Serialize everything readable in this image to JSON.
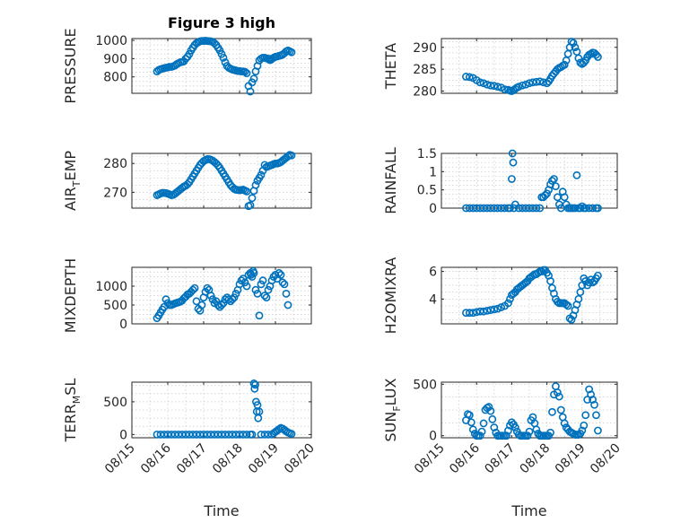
{
  "chart_data": [
    {
      "type": "scatter",
      "title": "Figure 3 high",
      "ylabel": "PRESSURE",
      "ylim": [
        710,
        1010
      ],
      "yticks": [
        800,
        900,
        1000
      ],
      "x": [
        15.7,
        15.75,
        15.8,
        15.85,
        15.9,
        15.95,
        16.0,
        16.05,
        16.1,
        16.15,
        16.2,
        16.25,
        16.3,
        16.35,
        16.4,
        16.45,
        16.5,
        16.55,
        16.6,
        16.65,
        16.7,
        16.75,
        16.8,
        16.85,
        16.9,
        16.95,
        17.0,
        17.05,
        17.1,
        17.15,
        17.2,
        17.25,
        17.3,
        17.35,
        17.4,
        17.45,
        17.5,
        17.55,
        17.6,
        17.65,
        17.7,
        17.75,
        17.8,
        17.85,
        17.9,
        17.95,
        18.0,
        18.05,
        18.1,
        18.15,
        18.2,
        18.25,
        18.3,
        18.35,
        18.4,
        18.45,
        18.5,
        18.55,
        18.6,
        18.65,
        18.7,
        18.75,
        18.8,
        18.82,
        18.85,
        18.88,
        18.9,
        18.95,
        19.0,
        19.05,
        19.1,
        19.15,
        19.2,
        19.25,
        19.3,
        19.35,
        19.4,
        19.45
      ],
      "values": [
        830,
        838,
        842,
        845,
        848,
        850,
        852,
        855,
        855,
        858,
        862,
        870,
        875,
        880,
        882,
        885,
        900,
        910,
        925,
        945,
        960,
        975,
        985,
        990,
        995,
        997,
        997,
        998,
        997,
        996,
        995,
        992,
        985,
        975,
        960,
        945,
        925,
        905,
        880,
        860,
        850,
        845,
        840,
        838,
        835,
        832,
        832,
        830,
        830,
        828,
        820,
        750,
        720,
        770,
        790,
        830,
        860,
        890,
        900,
        905,
        905,
        902,
        900,
        895,
        892,
        895,
        900,
        905,
        910,
        912,
        915,
        918,
        922,
        930,
        940,
        945,
        940,
        935
      ]
    },
    {
      "type": "scatter",
      "ylabel": "THETA",
      "ylim": [
        279.5,
        292
      ],
      "yticks": [
        280,
        285,
        290
      ],
      "x": [
        15.7,
        15.8,
        15.9,
        16.0,
        16.1,
        16.2,
        16.3,
        16.4,
        16.5,
        16.6,
        16.7,
        16.8,
        16.9,
        16.95,
        17.0,
        17.05,
        17.1,
        17.15,
        17.2,
        17.3,
        17.4,
        17.5,
        17.6,
        17.7,
        17.8,
        17.9,
        18.0,
        18.05,
        18.1,
        18.15,
        18.2,
        18.25,
        18.3,
        18.35,
        18.4,
        18.45,
        18.5,
        18.55,
        18.6,
        18.65,
        18.7,
        18.75,
        18.8,
        18.85,
        18.9,
        18.95,
        19.0,
        19.05,
        19.1,
        19.15,
        19.2,
        19.25,
        19.3,
        19.35,
        19.4,
        19.45
      ],
      "values": [
        283.3,
        283.2,
        283.0,
        282.5,
        282.0,
        281.8,
        281.5,
        281.3,
        281.2,
        281.0,
        280.8,
        280.4,
        280.3,
        280.1,
        280.0,
        280.2,
        280.5,
        280.8,
        281.0,
        281.3,
        281.5,
        281.8,
        282.0,
        282.1,
        282.2,
        282.0,
        281.8,
        282.2,
        282.8,
        283.5,
        284.0,
        284.5,
        285.0,
        285.3,
        285.5,
        285.8,
        286.0,
        287.0,
        288.5,
        290.0,
        291.3,
        291.0,
        290.0,
        289.0,
        287.5,
        286.5,
        286.2,
        286.5,
        287.0,
        287.8,
        288.3,
        288.5,
        288.8,
        288.7,
        288.3,
        287.8
      ]
    },
    {
      "type": "scatter",
      "ylabel": "AIR_TEMP",
      "ylim": [
        264.5,
        283.5
      ],
      "yticks": [
        270,
        280
      ],
      "x": [
        15.7,
        15.75,
        15.8,
        15.85,
        15.9,
        15.95,
        16.0,
        16.05,
        16.1,
        16.15,
        16.2,
        16.25,
        16.3,
        16.35,
        16.4,
        16.45,
        16.5,
        16.55,
        16.6,
        16.65,
        16.7,
        16.75,
        16.8,
        16.85,
        16.9,
        16.95,
        17.0,
        17.05,
        17.1,
        17.15,
        17.2,
        17.25,
        17.3,
        17.35,
        17.4,
        17.45,
        17.5,
        17.55,
        17.6,
        17.65,
        17.7,
        17.75,
        17.8,
        17.85,
        17.9,
        17.95,
        18.0,
        18.05,
        18.1,
        18.15,
        18.2,
        18.25,
        18.3,
        18.35,
        18.4,
        18.45,
        18.5,
        18.55,
        18.6,
        18.65,
        18.7,
        18.75,
        18.8,
        18.85,
        18.9,
        18.95,
        19.0,
        19.05,
        19.1,
        19.15,
        19.2,
        19.25,
        19.3,
        19.35,
        19.4,
        19.45
      ],
      "values": [
        269.0,
        269.3,
        269.6,
        269.8,
        269.8,
        269.7,
        269.5,
        269.3,
        269.0,
        269.1,
        269.5,
        270.0,
        270.5,
        271.0,
        271.5,
        272.0,
        272.3,
        272.8,
        273.5,
        274.5,
        275.5,
        276.5,
        277.5,
        278.5,
        279.5,
        280.2,
        280.8,
        281.2,
        281.5,
        281.5,
        281.3,
        281.0,
        280.5,
        280.0,
        279.3,
        278.5,
        277.5,
        276.5,
        275.5,
        274.5,
        273.5,
        272.5,
        271.8,
        271.2,
        270.9,
        270.8,
        270.7,
        270.8,
        270.9,
        270.6,
        270.3,
        265.2,
        265.5,
        268.0,
        270.5,
        272.5,
        274.0,
        275.0,
        276.0,
        277.5,
        279.5,
        278.8,
        279.0,
        279.3,
        279.5,
        279.8,
        280.0,
        280.0,
        280.2,
        280.5,
        281.0,
        281.5,
        282.0,
        282.5,
        283.0,
        282.8
      ]
    },
    {
      "type": "scatter",
      "ylabel": "RAINFALL",
      "ylim": [
        0,
        1.5
      ],
      "yticks": [
        0,
        0.5,
        1,
        1.5
      ],
      "x": [
        15.7,
        15.8,
        15.9,
        16.0,
        16.1,
        16.2,
        16.3,
        16.4,
        16.5,
        16.6,
        16.7,
        16.8,
        16.9,
        16.95,
        17.0,
        17.02,
        17.04,
        17.06,
        17.1,
        17.2,
        17.3,
        17.4,
        17.5,
        17.6,
        17.7,
        17.8,
        17.85,
        17.9,
        17.95,
        18.0,
        18.05,
        18.1,
        18.15,
        18.2,
        18.25,
        18.3,
        18.35,
        18.4,
        18.45,
        18.5,
        18.55,
        18.6,
        18.65,
        18.7,
        18.75,
        18.8,
        18.85,
        18.9,
        18.95,
        19.0,
        19.05,
        19.1,
        19.2,
        19.3,
        19.4,
        19.45
      ],
      "values": [
        0,
        0,
        0,
        0,
        0,
        0,
        0,
        0,
        0,
        0,
        0,
        0,
        0,
        0,
        0.8,
        1.5,
        1.25,
        0,
        0.1,
        0,
        0,
        0,
        0,
        0,
        0,
        0,
        0.3,
        0.3,
        0.35,
        0.4,
        0.5,
        0.65,
        0.75,
        0.8,
        0.6,
        0.3,
        0.1,
        0,
        0.45,
        0.3,
        0.1,
        0,
        0,
        0,
        0,
        0,
        0.9,
        0,
        0,
        0.05,
        0,
        0,
        0,
        0,
        0,
        0
      ]
    },
    {
      "type": "scatter",
      "ylabel": "MIXDEPTH",
      "ylim": [
        0,
        1500
      ],
      "yticks": [
        0,
        500,
        1000
      ],
      "x": [
        15.7,
        15.75,
        15.8,
        15.85,
        15.9,
        15.95,
        16.0,
        16.05,
        16.1,
        16.15,
        16.2,
        16.25,
        16.3,
        16.35,
        16.4,
        16.45,
        16.5,
        16.55,
        16.6,
        16.65,
        16.7,
        16.75,
        16.8,
        16.85,
        16.9,
        16.95,
        17.0,
        17.05,
        17.1,
        17.15,
        17.2,
        17.25,
        17.3,
        17.35,
        17.4,
        17.45,
        17.5,
        17.55,
        17.6,
        17.65,
        17.7,
        17.75,
        17.8,
        17.85,
        17.9,
        17.95,
        18.0,
        18.05,
        18.1,
        18.15,
        18.2,
        18.25,
        18.3,
        18.32,
        18.35,
        18.38,
        18.4,
        18.45,
        18.5,
        18.55,
        18.6,
        18.65,
        18.7,
        18.75,
        18.8,
        18.85,
        18.9,
        18.95,
        19.0,
        19.05,
        19.1,
        19.15,
        19.2,
        19.25,
        19.3,
        19.35
      ],
      "values": [
        150,
        220,
        300,
        380,
        450,
        650,
        550,
        500,
        500,
        520,
        540,
        560,
        570,
        590,
        620,
        680,
        720,
        780,
        800,
        850,
        900,
        950,
        600,
        400,
        350,
        500,
        700,
        850,
        950,
        900,
        750,
        650,
        550,
        600,
        500,
        450,
        500,
        550,
        650,
        700,
        650,
        600,
        650,
        700,
        800,
        900,
        1050,
        1150,
        1200,
        1100,
        1000,
        1300,
        1350,
        1300,
        1250,
        1400,
        1350,
        900,
        800,
        220,
        1050,
        1150,
        750,
        700,
        900,
        1000,
        1150,
        1250,
        1300,
        1200,
        1350,
        1300,
        1100,
        1050,
        800,
        500
      ]
    },
    {
      "type": "scatter",
      "ylabel": "H2OMIXRA",
      "ylim": [
        2.2,
        6.3
      ],
      "yticks": [
        4,
        6
      ],
      "x": [
        15.7,
        15.8,
        15.9,
        16.0,
        16.1,
        16.2,
        16.3,
        16.4,
        16.5,
        16.6,
        16.7,
        16.8,
        16.9,
        16.95,
        17.0,
        17.05,
        17.1,
        17.15,
        17.2,
        17.25,
        17.3,
        17.35,
        17.4,
        17.45,
        17.5,
        17.55,
        17.6,
        17.65,
        17.7,
        17.75,
        17.8,
        17.85,
        17.9,
        17.95,
        18.0,
        18.05,
        18.1,
        18.15,
        18.2,
        18.25,
        18.3,
        18.35,
        18.4,
        18.45,
        18.5,
        18.55,
        18.6,
        18.65,
        18.7,
        18.75,
        18.8,
        18.85,
        18.9,
        18.95,
        19.0,
        19.05,
        19.1,
        19.15,
        19.2,
        19.25,
        19.3,
        19.35,
        19.4,
        19.45
      ],
      "values": [
        3.0,
        3.0,
        3.0,
        3.05,
        3.1,
        3.1,
        3.15,
        3.2,
        3.25,
        3.3,
        3.4,
        3.5,
        3.7,
        4.0,
        4.3,
        4.4,
        4.5,
        4.7,
        4.8,
        4.9,
        5.0,
        5.1,
        5.2,
        5.3,
        5.5,
        5.6,
        5.7,
        5.8,
        5.8,
        5.9,
        6.0,
        6.0,
        6.1,
        6.1,
        5.9,
        5.7,
        5.3,
        4.8,
        4.4,
        4.0,
        3.8,
        3.7,
        3.7,
        3.7,
        3.7,
        3.6,
        3.5,
        2.6,
        2.5,
        2.8,
        3.2,
        3.6,
        4.0,
        4.5,
        5.0,
        5.5,
        5.3,
        5.0,
        5.2,
        5.4,
        5.2,
        5.3,
        5.5,
        5.7
      ]
    },
    {
      "type": "scatter",
      "ylabel": "TERR_MSL",
      "xlabel": "Time",
      "ylim": [
        -50,
        800
      ],
      "yticks": [
        0,
        500
      ],
      "x": [
        15.7,
        15.8,
        15.9,
        16.0,
        16.1,
        16.2,
        16.3,
        16.4,
        16.5,
        16.6,
        16.7,
        16.8,
        16.9,
        17.0,
        17.1,
        17.2,
        17.3,
        17.4,
        17.5,
        17.6,
        17.7,
        17.8,
        17.9,
        18.0,
        18.1,
        18.2,
        18.3,
        18.35,
        18.4,
        18.42,
        18.44,
        18.46,
        18.48,
        18.5,
        18.52,
        18.55,
        18.6,
        18.7,
        18.8,
        18.9,
        18.95,
        19.0,
        19.05,
        19.1,
        19.15,
        19.2,
        19.25,
        19.3,
        19.35,
        19.4,
        19.45
      ],
      "values": [
        0,
        0,
        0,
        0,
        0,
        0,
        0,
        0,
        0,
        0,
        0,
        0,
        0,
        0,
        0,
        0,
        0,
        0,
        0,
        0,
        0,
        0,
        0,
        0,
        0,
        0,
        0,
        0,
        780,
        700,
        760,
        500,
        350,
        450,
        250,
        350,
        0,
        0,
        0,
        0,
        20,
        40,
        60,
        80,
        100,
        90,
        70,
        50,
        30,
        20,
        10
      ]
    },
    {
      "type": "scatter",
      "ylabel": "SUN_FLUX",
      "xlabel": "Time",
      "ylim": [
        -20,
        520
      ],
      "yticks": [
        0,
        500
      ],
      "x": [
        15.7,
        15.75,
        15.8,
        15.85,
        15.9,
        15.95,
        16.0,
        16.05,
        16.1,
        16.15,
        16.2,
        16.25,
        16.3,
        16.35,
        16.4,
        16.45,
        16.5,
        16.55,
        16.6,
        16.65,
        16.7,
        16.75,
        16.8,
        16.85,
        16.9,
        16.95,
        17.0,
        17.05,
        17.1,
        17.15,
        17.2,
        17.25,
        17.3,
        17.35,
        17.4,
        17.45,
        17.5,
        17.55,
        17.6,
        17.65,
        17.7,
        17.75,
        17.8,
        17.85,
        17.9,
        17.95,
        18.0,
        18.05,
        18.1,
        18.15,
        18.2,
        18.25,
        18.3,
        18.35,
        18.4,
        18.45,
        18.5,
        18.55,
        18.6,
        18.65,
        18.7,
        18.75,
        18.8,
        18.85,
        18.9,
        18.95,
        19.0,
        19.05,
        19.1,
        19.15,
        19.2,
        19.25,
        19.3,
        19.35,
        19.4,
        19.45
      ],
      "values": [
        150,
        210,
        200,
        130,
        60,
        20,
        0,
        0,
        0,
        40,
        120,
        250,
        270,
        280,
        240,
        160,
        80,
        30,
        0,
        0,
        0,
        0,
        0,
        0,
        50,
        100,
        130,
        110,
        80,
        40,
        10,
        0,
        0,
        0,
        0,
        0,
        40,
        150,
        180,
        120,
        60,
        20,
        0,
        0,
        0,
        0,
        0,
        0,
        30,
        230,
        400,
        480,
        420,
        380,
        250,
        180,
        120,
        80,
        60,
        40,
        30,
        20,
        10,
        10,
        10,
        20,
        50,
        100,
        200,
        350,
        450,
        400,
        350,
        300,
        200,
        50
      ]
    }
  ],
  "axes_common": {
    "xlim": [
      15,
      20
    ],
    "xticks": [
      15,
      16,
      17,
      18,
      19,
      20
    ],
    "xticklabels": [
      "08/15",
      "08/16",
      "08/17",
      "08/18",
      "08/19",
      "08/20"
    ]
  },
  "colors": {
    "marker": "#0072BD",
    "grid": "#c8c8c8",
    "axis": "#262626"
  },
  "style": {
    "marker": "o",
    "grid": "on"
  }
}
